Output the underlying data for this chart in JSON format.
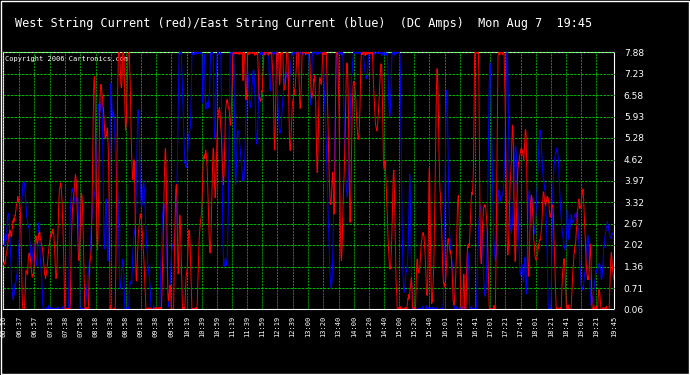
{
  "title": "West String Current (red)/East String Current (blue)  (DC Amps)  Mon Aug 7  19:45",
  "copyright": "Copyright 2006 Cartronics.com",
  "background_color": "#000000",
  "plot_bg_color": "#008000",
  "grid_major_color": "#00FF00",
  "grid_minor_color": "#006400",
  "title_color": "#FFFFFF",
  "copyright_color": "#FFFFFF",
  "west_color": "#FF0000",
  "east_color": "#0000FF",
  "ylim": [
    0.06,
    7.88
  ],
  "yticks": [
    0.06,
    0.71,
    1.36,
    2.02,
    2.67,
    3.32,
    3.97,
    4.62,
    5.28,
    5.93,
    6.58,
    7.23,
    7.88
  ],
  "xtick_labels": [
    "06:16",
    "06:37",
    "06:57",
    "07:18",
    "07:38",
    "07:58",
    "08:18",
    "08:38",
    "08:58",
    "09:18",
    "09:38",
    "09:58",
    "10:19",
    "10:39",
    "10:59",
    "11:19",
    "11:39",
    "11:59",
    "12:19",
    "12:39",
    "13:00",
    "13:20",
    "13:40",
    "14:00",
    "14:20",
    "14:40",
    "15:00",
    "15:20",
    "15:40",
    "16:01",
    "16:21",
    "16:41",
    "17:01",
    "17:21",
    "17:41",
    "18:01",
    "18:21",
    "18:41",
    "19:01",
    "19:21",
    "19:45"
  ]
}
